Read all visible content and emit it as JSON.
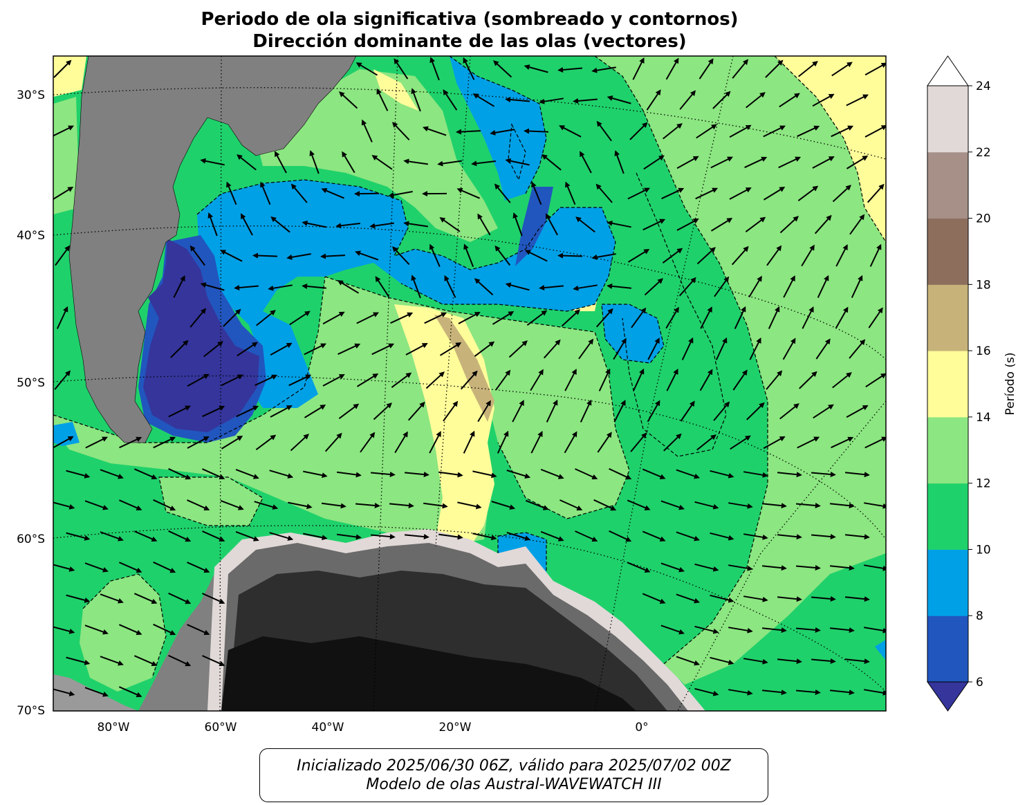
{
  "title": {
    "line1": "Periodo de ola significativa (sombreado y contornos)",
    "line2": "Dirección dominante de las olas (vectores)"
  },
  "map": {
    "lon_range": [
      -90,
      40
    ],
    "lat_range": [
      -70,
      -27
    ],
    "lat_tick_labels": [
      "30°S",
      "40°S",
      "50°S",
      "60°S",
      "70°S"
    ],
    "lon_tick_labels": [
      "80°W",
      "60°W",
      "40°W",
      "20°W",
      "0°"
    ],
    "colors": {
      "land": "#808080",
      "ice_dark": "#111111",
      "coast_border": "#000000",
      "vector": "#000000"
    }
  },
  "colorbar": {
    "label": "Período (s)",
    "ticks": [
      "6",
      "8",
      "10",
      "12",
      "14",
      "16",
      "18",
      "20",
      "22",
      "24"
    ],
    "bins": [
      {
        "range": "<6",
        "color": "#35359c"
      },
      {
        "range": "6-8",
        "color": "#2156be"
      },
      {
        "range": "8-10",
        "color": "#00a0e6"
      },
      {
        "range": "10-12",
        "color": "#1fd16b"
      },
      {
        "range": "12-14",
        "color": "#8ce681"
      },
      {
        "range": "14-16",
        "color": "#fffc9a"
      },
      {
        "range": "16-18",
        "color": "#c7b37a"
      },
      {
        "range": "18-20",
        "color": "#8d6e5d"
      },
      {
        "range": "20-22",
        "color": "#a69087"
      },
      {
        "range": "22-24",
        "color": "#e1d9d7"
      },
      {
        "range": ">24",
        "color": "#ffffff"
      }
    ]
  },
  "caption": {
    "line1": "Inicializado 2025/06/30 06Z, válido para 2025/07/02 00Z",
    "line2": "Modelo de olas Austral-WAVEWATCH III"
  }
}
